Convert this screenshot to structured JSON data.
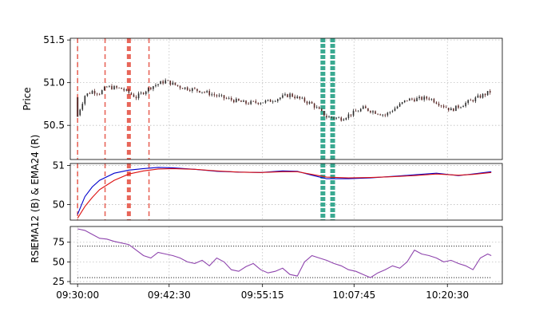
{
  "chart_data": [
    {
      "panel": "price",
      "type": "candlestick",
      "ylabel": "Price",
      "ylim": [
        50.1,
        51.52
      ],
      "yticks": [
        50.5,
        51.0,
        51.5
      ],
      "ytick_labels": [
        "50.5",
        "51.0",
        "51.5"
      ],
      "grid": true,
      "colors": {
        "up": "#2c2c2c",
        "down": "#5a2a28",
        "buy_line": "#e8665a",
        "sell_line": "#3aa991"
      },
      "ohlc_summary": {
        "x": [
          "09:30:00",
          "09:31:00",
          "09:32:00",
          "09:33:00",
          "09:34:00",
          "09:36:00",
          "09:38:00",
          "09:40:00",
          "09:42:00",
          "09:44:00",
          "09:47:00",
          "09:50:00",
          "09:53:00",
          "09:56:00",
          "09:59:00",
          "10:02:00",
          "10:04:00",
          "10:06:00",
          "10:09:00",
          "10:12:00",
          "10:15:00",
          "10:18:00",
          "10:21:00",
          "10:24:00",
          "10:26:30"
        ],
        "close": [
          50.62,
          50.85,
          50.9,
          50.88,
          50.95,
          50.93,
          50.83,
          50.95,
          51.02,
          50.95,
          50.9,
          50.82,
          50.76,
          50.78,
          50.86,
          50.75,
          50.6,
          50.58,
          50.7,
          50.62,
          50.8,
          50.82,
          50.68,
          50.8,
          50.9
        ]
      },
      "buy_markers": [
        "09:30:00",
        "09:33:45",
        "09:37:00",
        "09:39:45"
      ],
      "sell_markers": [
        "10:03:30",
        "10:04:50"
      ]
    },
    {
      "panel": "ema",
      "type": "line",
      "ylabel": "EMA12 (B) & EMA24 (R)",
      "ylim": [
        49.6,
        51.05
      ],
      "yticks": [
        50,
        51
      ],
      "ytick_labels": [
        "50",
        "51"
      ],
      "grid": true,
      "x": [
        "09:30:00",
        "09:31:00",
        "09:32:00",
        "09:33:00",
        "09:35:00",
        "09:37:00",
        "09:39:00",
        "09:41:00",
        "09:43:00",
        "09:46:00",
        "09:49:00",
        "09:52:00",
        "09:55:00",
        "09:58:00",
        "10:00:00",
        "10:02:00",
        "10:04:00",
        "10:07:00",
        "10:10:00",
        "10:13:00",
        "10:16:00",
        "10:19:00",
        "10:22:00",
        "10:24:00",
        "10:26:30"
      ],
      "series": [
        {
          "name": "EMA12",
          "color": "#0000cc",
          "values": [
            49.75,
            50.2,
            50.45,
            50.62,
            50.8,
            50.88,
            50.92,
            50.95,
            50.94,
            50.9,
            50.85,
            50.83,
            50.82,
            50.86,
            50.85,
            50.75,
            50.66,
            50.66,
            50.68,
            50.72,
            50.76,
            50.8,
            50.74,
            50.78,
            50.84
          ]
        },
        {
          "name": "EMA24",
          "color": "#dd1111",
          "values": [
            49.65,
            49.95,
            50.18,
            50.38,
            50.62,
            50.78,
            50.86,
            50.91,
            50.92,
            50.9,
            50.86,
            50.83,
            50.82,
            50.84,
            50.84,
            50.77,
            50.7,
            50.68,
            50.69,
            50.71,
            50.74,
            50.78,
            50.75,
            50.77,
            50.82
          ]
        }
      ]
    },
    {
      "panel": "rsi",
      "type": "line",
      "ylabel": "RSI",
      "ylim": [
        22,
        95
      ],
      "yticks": [
        25,
        50,
        75
      ],
      "ytick_labels": [
        "25",
        "50",
        "75"
      ],
      "grid": true,
      "thresholds": [
        30,
        70
      ],
      "x": [
        "09:30:00",
        "09:31:00",
        "09:32:00",
        "09:33:00",
        "09:34:00",
        "09:35:00",
        "09:36:00",
        "09:37:00",
        "09:38:00",
        "09:39:00",
        "09:40:00",
        "09:41:00",
        "09:42:00",
        "09:43:00",
        "09:44:00",
        "09:45:00",
        "09:46:00",
        "09:47:00",
        "09:48:00",
        "09:49:00",
        "09:50:00",
        "09:51:00",
        "09:52:00",
        "09:53:00",
        "09:54:00",
        "09:55:00",
        "09:56:00",
        "09:57:00",
        "09:58:00",
        "09:59:00",
        "10:00:00",
        "10:01:00",
        "10:02:00",
        "10:03:00",
        "10:04:00",
        "10:05:00",
        "10:06:00",
        "10:07:00",
        "10:08:00",
        "10:09:00",
        "10:10:00",
        "10:11:00",
        "10:12:00",
        "10:13:00",
        "10:14:00",
        "10:15:00",
        "10:16:00",
        "10:17:00",
        "10:18:00",
        "10:19:00",
        "10:20:00",
        "10:21:00",
        "10:22:00",
        "10:23:00",
        "10:24:00",
        "10:25:00",
        "10:26:00",
        "10:26:30"
      ],
      "series": [
        {
          "name": "RSI",
          "color": "#8e44ad",
          "values": [
            92,
            90,
            85,
            80,
            79,
            76,
            74,
            72,
            65,
            58,
            55,
            62,
            60,
            58,
            55,
            50,
            48,
            52,
            45,
            55,
            50,
            40,
            38,
            44,
            48,
            40,
            36,
            38,
            42,
            34,
            32,
            50,
            58,
            55,
            52,
            48,
            45,
            40,
            38,
            34,
            30,
            36,
            40,
            45,
            42,
            50,
            65,
            60,
            58,
            55,
            50,
            52,
            48,
            45,
            40,
            55,
            60,
            58
          ]
        }
      ]
    }
  ],
  "x_axis": {
    "ticks": [
      "09:30:00",
      "09:42:30",
      "09:55:15",
      "10:07:45",
      "10:20:30"
    ],
    "range": [
      "09:29:00",
      "10:28:00"
    ]
  }
}
